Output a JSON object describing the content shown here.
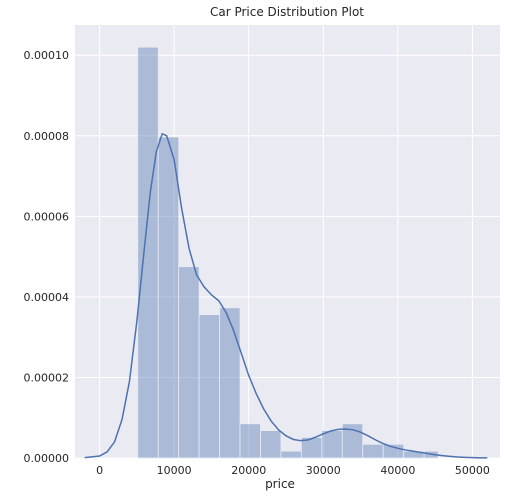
{
  "chart_data": {
    "type": "bar",
    "title": "Car Price Distribution Plot",
    "xlabel": "price",
    "ylabel": "",
    "xlim": [
      -3300,
      53700
    ],
    "ylim": [
      0,
      0.0001075
    ],
    "x_ticks": [
      0,
      10000,
      20000,
      30000,
      40000,
      50000
    ],
    "y_ticks": [
      0,
      2e-05,
      4e-05,
      6e-05,
      8e-05,
      0.0001
    ],
    "x_tick_labels": [
      "0",
      "10000",
      "20000",
      "30000",
      "40000",
      "50000"
    ],
    "y_tick_labels": [
      "0.00000",
      "0.00002",
      "0.00004",
      "0.00006",
      "0.00008",
      "0.00010"
    ],
    "grid": true,
    "series": [
      {
        "kind": "histogram",
        "color": "#4c72b0",
        "opacity": 0.4,
        "bins": [
          {
            "x0": 5118,
            "x1": 7861,
            "density": 0.000102
          },
          {
            "x0": 7861,
            "x1": 10604,
            "density": 7.97e-05
          },
          {
            "x0": 10604,
            "x1": 13347,
            "density": 4.75e-05
          },
          {
            "x0": 13347,
            "x1": 16090,
            "density": 3.56e-05
          },
          {
            "x0": 16090,
            "x1": 18833,
            "density": 3.73e-05
          },
          {
            "x0": 18833,
            "x1": 21576,
            "density": 8.5e-06
          },
          {
            "x0": 21576,
            "x1": 24319,
            "density": 6.8e-06
          },
          {
            "x0": 24319,
            "x1": 27062,
            "density": 1.7e-06
          },
          {
            "x0": 27062,
            "x1": 29805,
            "density": 5.1e-06
          },
          {
            "x0": 29805,
            "x1": 32548,
            "density": 6.8e-06
          },
          {
            "x0": 32548,
            "x1": 35291,
            "density": 8.5e-06
          },
          {
            "x0": 35291,
            "x1": 38034,
            "density": 3.4e-06
          },
          {
            "x0": 38034,
            "x1": 40777,
            "density": 3.4e-06
          },
          {
            "x0": 40777,
            "x1": 43520,
            "density": 1.7e-06
          },
          {
            "x0": 43520,
            "x1": 45400,
            "density": 1.7e-06
          }
        ]
      },
      {
        "kind": "kde",
        "color": "#4c72b0",
        "x": [
          -2000,
          0,
          1000,
          2000,
          3000,
          4000,
          5000,
          6000,
          6800,
          7600,
          8400,
          9000,
          10000,
          11000,
          12000,
          13000,
          14000,
          15000,
          16000,
          17000,
          18000,
          19000,
          20000,
          21000,
          22000,
          23000,
          24000,
          25000,
          26000,
          27000,
          28000,
          29000,
          30000,
          31000,
          32000,
          33000,
          34000,
          35000,
          36000,
          37000,
          38000,
          39000,
          40000,
          41000,
          42000,
          43000,
          44000,
          45000,
          46000,
          47000,
          48000,
          49000,
          50000,
          51000,
          52000
        ],
        "y": [
          1e-07,
          5e-07,
          1.5e-06,
          4e-06,
          9.5e-06,
          1.9e-05,
          3.4e-05,
          5.2e-05,
          6.6e-05,
          7.6e-05,
          8.05e-05,
          8e-05,
          7.4e-05,
          6.2e-05,
          5.2e-05,
          4.55e-05,
          4.25e-05,
          4.05e-05,
          3.9e-05,
          3.6e-05,
          3.15e-05,
          2.6e-05,
          2.05e-05,
          1.6e-05,
          1.22e-05,
          9.2e-06,
          7e-06,
          5.5e-06,
          4.6e-06,
          4.3e-06,
          4.5e-06,
          5.2e-06,
          6e-06,
          6.7e-06,
          7.1e-06,
          7.2e-06,
          7e-06,
          6.4e-06,
          5.5e-06,
          4.5e-06,
          3.6e-06,
          2.9e-06,
          2.4e-06,
          2e-06,
          1.7e-06,
          1.4e-06,
          1.1e-06,
          8e-07,
          6e-07,
          4e-07,
          2.5e-07,
          1.5e-07,
          8e-08,
          4e-08,
          2e-08
        ]
      }
    ]
  }
}
